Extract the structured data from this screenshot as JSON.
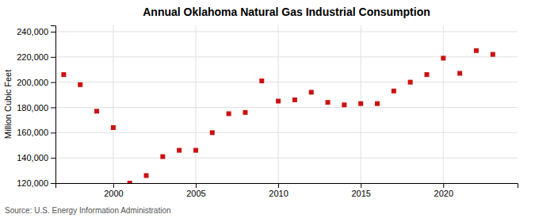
{
  "chart_data": {
    "type": "scatter",
    "title": "Annual Oklahoma Natural Gas Industrial Consumption",
    "ylabel": "Million Cubic Feet",
    "annotations": [
      "Source: U.S. Energy Information Administration"
    ],
    "x": [
      1997,
      1998,
      1999,
      2000,
      2001,
      2002,
      2003,
      2004,
      2005,
      2006,
      2007,
      2008,
      2009,
      2010,
      2011,
      2012,
      2013,
      2014,
      2015,
      2016,
      2017,
      2018,
      2019,
      2020,
      2021,
      2022,
      2023
    ],
    "values": [
      206000,
      198000,
      177000,
      164000,
      120000,
      126000,
      141000,
      146000,
      146000,
      160000,
      175000,
      176000,
      201000,
      185000,
      186000,
      192000,
      184000,
      182000,
      183000,
      183000,
      193000,
      200000,
      206000,
      219000,
      207000,
      225000,
      222000
    ],
    "color": "#cc1111",
    "marker": "square",
    "xlim": [
      1996.5,
      2024.5
    ],
    "xticks": [
      2000,
      2005,
      2010,
      2015,
      2020
    ],
    "ylim": [
      120000,
      245000
    ],
    "yticks": [
      {
        "value": 120000,
        "label": "120,000"
      },
      {
        "value": 140000,
        "label": "140,000"
      },
      {
        "value": 160000,
        "label": "160,000"
      },
      {
        "value": 180000,
        "label": "180,000"
      },
      {
        "value": 200000,
        "label": "200,000"
      },
      {
        "value": 220000,
        "label": "220,000"
      },
      {
        "value": 240000,
        "label": "240,000"
      }
    ],
    "grid": true
  }
}
